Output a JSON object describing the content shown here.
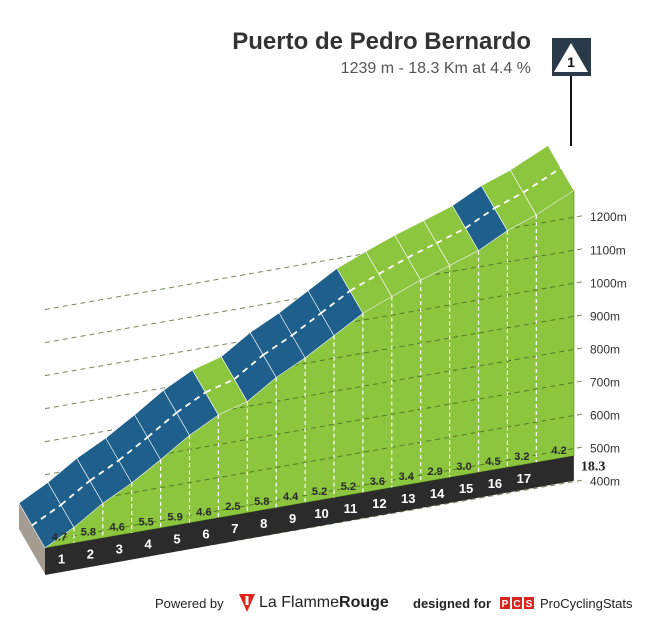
{
  "chart_data": {
    "type": "area",
    "title": "Puerto de Pedro Bernardo",
    "subtitle": "1239 m - 18.3 Km at 4.4 %",
    "climb_badge": "1",
    "km_labels": [
      "1",
      "2",
      "3",
      "4",
      "5",
      "6",
      "7",
      "8",
      "9",
      "10",
      "11",
      "12",
      "13",
      "14",
      "15",
      "16",
      "17"
    ],
    "final_km_label": "18.3",
    "gradients": [
      4.7,
      5.8,
      4.6,
      5.5,
      5.9,
      4.6,
      2.5,
      5.8,
      4.4,
      5.2,
      5.2,
      3.6,
      3.4,
      2.9,
      3.0,
      4.5,
      3.2,
      4.2
    ],
    "gradient_labels": [
      "4.7",
      "5.8",
      "4.6",
      "5.5",
      "5.9",
      "4.6",
      "2.5",
      "5.8",
      "4.4",
      "5.2",
      "5.2",
      "3.6",
      "3.4",
      "2.9",
      "3.0",
      "4.5",
      "3.2",
      "4.2"
    ],
    "y_ticks": [
      400,
      500,
      600,
      700,
      800,
      900,
      1000,
      1100,
      1200
    ],
    "y_tick_labels": [
      "400m",
      "500m",
      "600m",
      "700m",
      "800m",
      "900m",
      "1000m",
      "1100m",
      "1200m"
    ],
    "elevation_end": 1239,
    "distance_km": 18.3,
    "colors": {
      "fill": "#8cc63f",
      "road_green": "#8cc63f",
      "road_blue": "#1f5f8b",
      "base": "#2b2b2b",
      "start_wall": "#a59c91",
      "grid": "#3a5a1a",
      "badge": "#2b3a4a"
    }
  },
  "footer": {
    "powered_by": "Powered by",
    "brand_light": "La Flamme",
    "brand_bold": "Rouge",
    "designed_for": "designed for",
    "pcs_badge": "PCS",
    "pcs_name": "ProCyclingStats"
  }
}
